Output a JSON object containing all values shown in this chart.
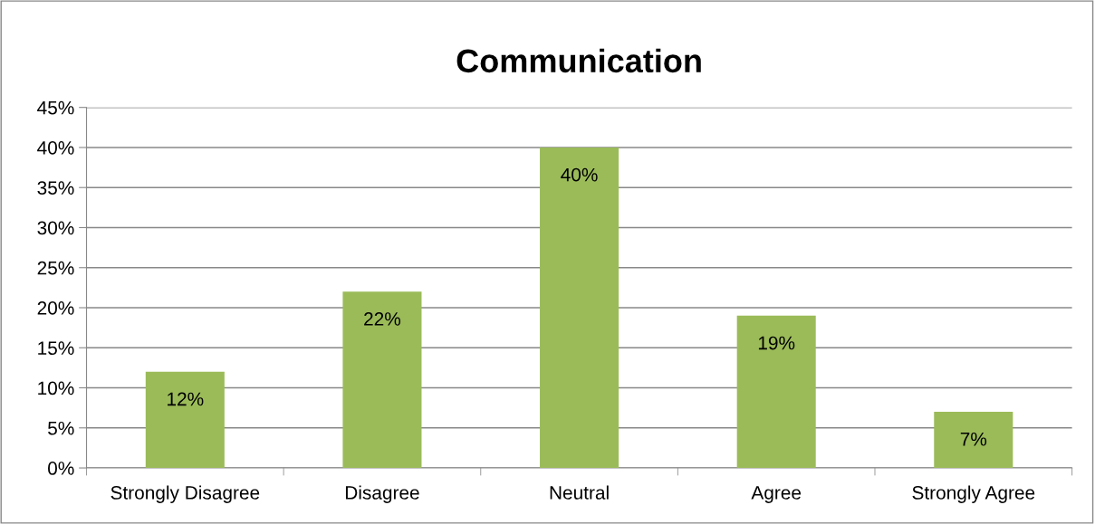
{
  "chart_data": {
    "type": "bar",
    "title": "Communication",
    "categories": [
      "Strongly Disagree",
      "Disagree",
      "Neutral",
      "Agree",
      "Strongly Agree"
    ],
    "values": [
      12,
      22,
      40,
      19,
      7
    ],
    "value_labels": [
      "12%",
      "22%",
      "40%",
      "19%",
      "7%"
    ],
    "color": "#9bbb59",
    "ylim": [
      0,
      45
    ],
    "yticks": [
      {
        "value": 0,
        "label": "0%"
      },
      {
        "value": 5,
        "label": "5%"
      },
      {
        "value": 10,
        "label": "10%"
      },
      {
        "value": 15,
        "label": "15%"
      },
      {
        "value": 20,
        "label": "20%"
      },
      {
        "value": 25,
        "label": "25%"
      },
      {
        "value": 30,
        "label": "30%"
      },
      {
        "value": 35,
        "label": "35%"
      },
      {
        "value": 40,
        "label": "40%"
      },
      {
        "value": 45,
        "label": "45%"
      }
    ],
    "grid": "y",
    "legend": false
  }
}
